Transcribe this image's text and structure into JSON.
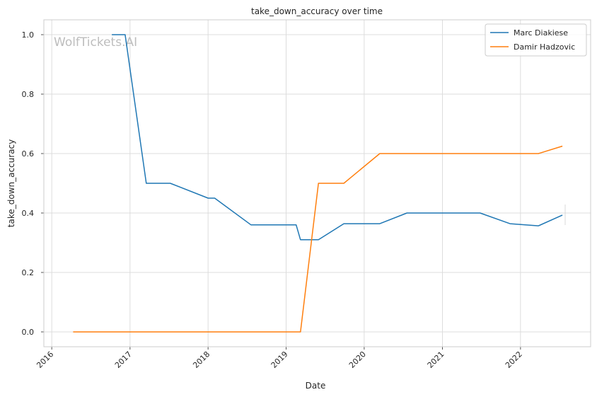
{
  "chart_data": {
    "type": "line",
    "title": "take_down_accuracy over time",
    "xlabel": "Date",
    "ylabel": "take_down_accuracy",
    "watermark": "WolfTickets.AI",
    "xlim": [
      "2015-11-25",
      "2022-11-25"
    ],
    "ylim": [
      -0.05,
      1.05
    ],
    "x_ticks": [
      "2016",
      "2017",
      "2018",
      "2019",
      "2020",
      "2021",
      "2022"
    ],
    "y_ticks": [
      "0.0",
      "0.2",
      "0.4",
      "0.6",
      "0.8",
      "1.0"
    ],
    "grid": true,
    "legend_position": "top-right",
    "series": [
      {
        "name": "Marc Diakiese",
        "color": "#1f77b4",
        "points": [
          [
            "2016-10-08",
            1.0
          ],
          [
            "2016-12-09",
            1.0
          ],
          [
            "2017-03-18",
            0.5
          ],
          [
            "2017-07-08",
            0.5
          ],
          [
            "2018-01-01",
            0.45
          ],
          [
            "2018-02-01",
            0.45
          ],
          [
            "2018-07-21",
            0.36
          ],
          [
            "2019-02-17",
            0.36
          ],
          [
            "2019-03-09",
            0.31
          ],
          [
            "2019-06-01",
            0.31
          ],
          [
            "2019-09-28",
            0.364
          ],
          [
            "2020-03-14",
            0.364
          ],
          [
            "2020-07-19",
            0.4
          ],
          [
            "2021-06-26",
            0.4
          ],
          [
            "2021-11-13",
            0.364
          ],
          [
            "2022-03-26",
            0.357
          ],
          [
            "2022-07-16",
            0.393
          ]
        ]
      },
      {
        "name": "Damir Hadzovic",
        "color": "#ff7f0e",
        "points": [
          [
            "2016-04-10",
            0.0
          ],
          [
            "2019-03-09",
            0.0
          ],
          [
            "2019-06-01",
            0.5
          ],
          [
            "2019-09-28",
            0.5
          ],
          [
            "2020-03-14",
            0.6
          ],
          [
            "2022-03-26",
            0.6
          ],
          [
            "2022-07-16",
            0.625
          ]
        ]
      }
    ]
  }
}
